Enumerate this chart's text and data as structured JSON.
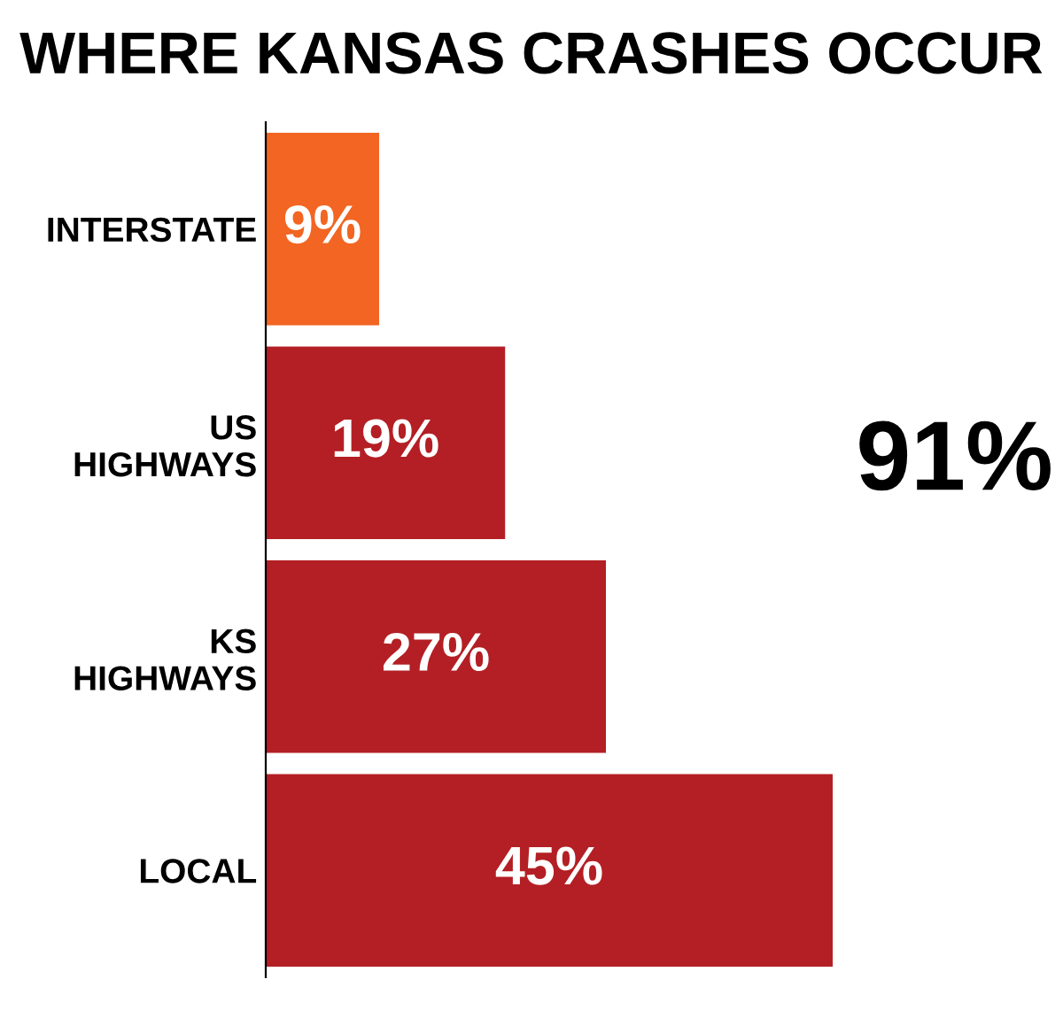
{
  "chart_data": {
    "type": "bar",
    "orientation": "horizontal",
    "title": "WHERE KANSAS CRASHES OCCUR",
    "categories": [
      "INTERSTATE",
      "US\nHIGHWAYS",
      "KS\nHIGHWAYS",
      "LOCAL"
    ],
    "values": [
      9,
      19,
      27,
      45
    ],
    "colors": [
      "#f26522",
      "#b31f24",
      "#b31f24",
      "#b31f24"
    ],
    "value_labels": [
      "9%",
      "19%",
      "27%",
      "45%"
    ],
    "annotations": [
      "91%"
    ]
  }
}
